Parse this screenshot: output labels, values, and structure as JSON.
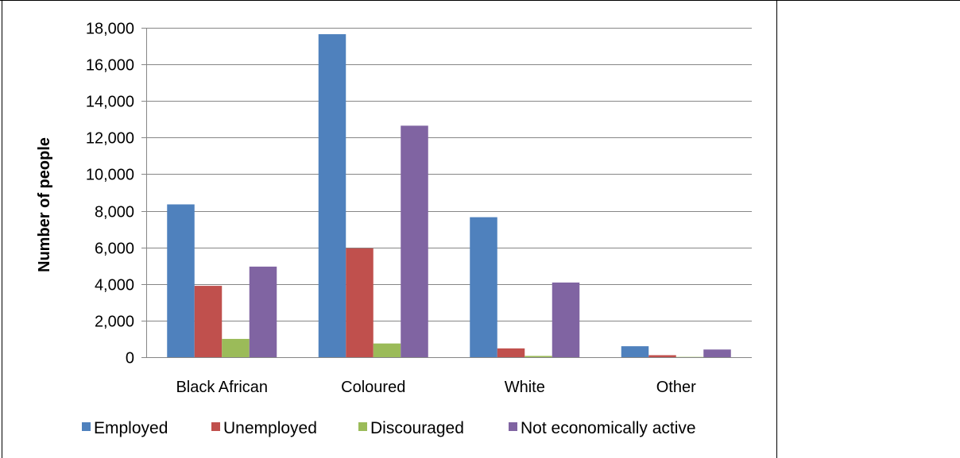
{
  "chart_data": {
    "type": "bar",
    "title": "",
    "xlabel": "",
    "ylabel": "Number of people",
    "ylim": [
      0,
      18000
    ],
    "yticks": [
      0,
      2000,
      4000,
      6000,
      8000,
      10000,
      12000,
      14000,
      16000,
      18000
    ],
    "ytick_labels": [
      "0",
      "2,000",
      "4,000",
      "6,000",
      "8,000",
      "10,000",
      "12,000",
      "14,000",
      "16,000",
      "18,000"
    ],
    "grid": "horizontal major gridlines",
    "legend_position": "bottom",
    "categories": [
      "Black African",
      "Coloured",
      "White",
      "Other"
    ],
    "series": [
      {
        "name": "Employed",
        "color": "#4F81BD",
        "values": [
          8350,
          17650,
          7650,
          600
        ]
      },
      {
        "name": "Unemployed",
        "color": "#C0504D",
        "values": [
          3900,
          5950,
          480,
          110
        ]
      },
      {
        "name": "Discouraged",
        "color": "#9BBB59",
        "values": [
          1000,
          750,
          70,
          15
        ]
      },
      {
        "name": "Not economically active",
        "color": "#8064A2",
        "values": [
          4950,
          12650,
          4080,
          420
        ]
      }
    ]
  }
}
